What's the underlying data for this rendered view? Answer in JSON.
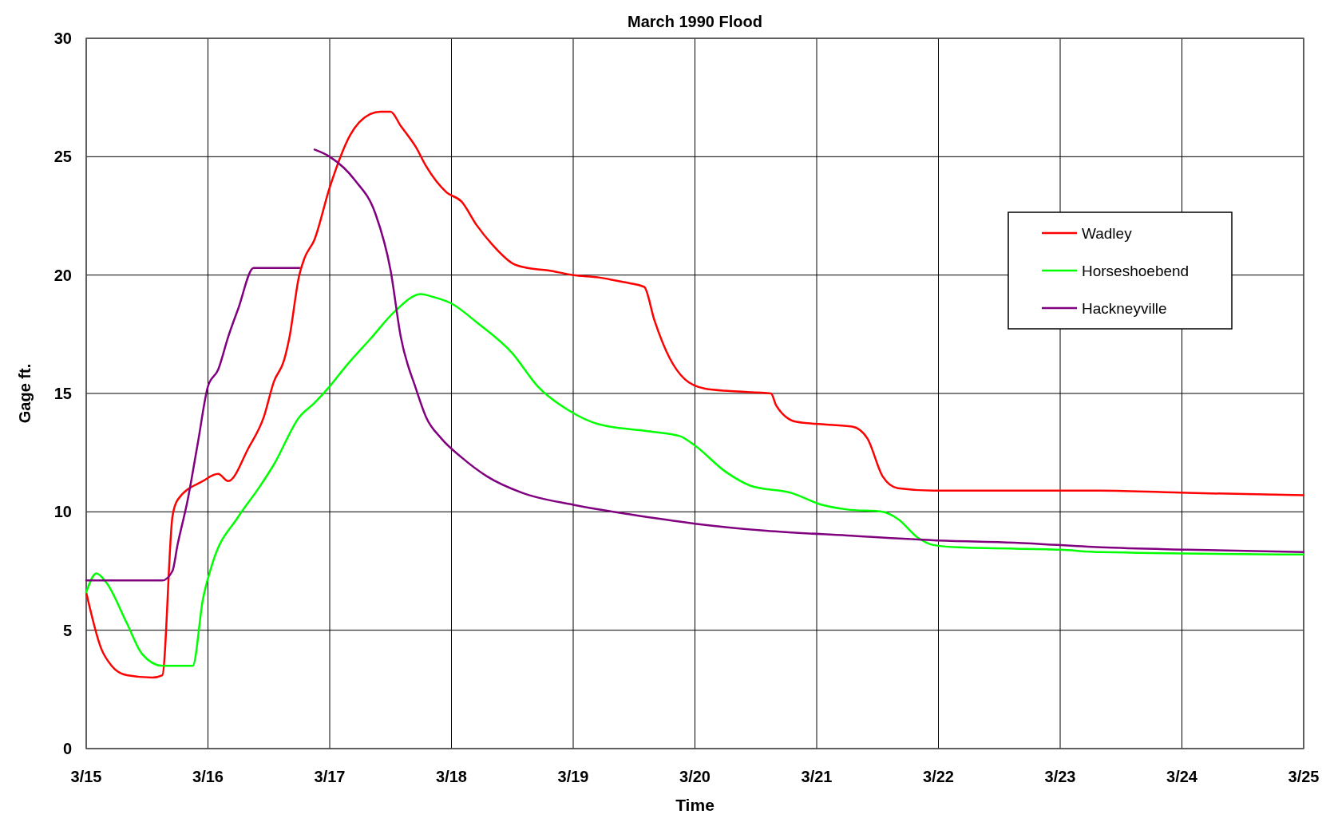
{
  "chart_data": {
    "type": "line",
    "title": "March 1990 Flood",
    "xlabel": "Time",
    "ylabel": "Gage ft.",
    "xlim": [
      "--03-15",
      "--03-25"
    ],
    "xticks": [
      {
        "value": "--03-15",
        "label": "3/15"
      },
      {
        "value": "--03-16",
        "label": "3/16"
      },
      {
        "value": "--03-17",
        "label": "3/17"
      },
      {
        "value": "--03-18",
        "label": "3/18"
      },
      {
        "value": "--03-19",
        "label": "3/19"
      },
      {
        "value": "--03-20",
        "label": "3/20"
      },
      {
        "value": "--03-21",
        "label": "3/21"
      },
      {
        "value": "--03-22",
        "label": "3/22"
      },
      {
        "value": "--03-23",
        "label": "3/23"
      },
      {
        "value": "--03-24",
        "label": "3/24"
      },
      {
        "value": "--03-25",
        "label": "3/25"
      }
    ],
    "ylim": [
      0,
      30
    ],
    "yticks": [
      0,
      5,
      10,
      15,
      20,
      25,
      30
    ],
    "grid": true,
    "legend": "right",
    "marker": "none",
    "line_style": "solid",
    "series": [
      {
        "name": "Wadley",
        "color": "#ff0000",
        "x": [
          "--03-15T00:00",
          "--03-15T03:00",
          "--03-15T05:00",
          "--03-15T08:00",
          "--03-15T13:00",
          "--03-15T15:00",
          "--03-15T17:00",
          "--03-15T18:00",
          "--03-15T23:00",
          "--03-16T02:00",
          "--03-16T04:00",
          "--03-16T08:00",
          "--03-16T11:00",
          "--03-16T13:00",
          "--03-16T15:00",
          "--03-16T16:00",
          "--03-16T18:00",
          "--03-16T19:00",
          "--03-16T21:00",
          "--03-17T00:00",
          "--03-17T04:00",
          "--03-17T08:00",
          "--03-17T10:00",
          "--03-17T12:00",
          "--03-17T14:00",
          "--03-17T17:00",
          "--03-17T19:00",
          "--03-17T23:00",
          "--03-18T02:00",
          "--03-18T05:00",
          "--03-18T08:00",
          "--03-18T12:00",
          "--03-18T15:00",
          "--03-18T19:00",
          "--03-19T00:00",
          "--03-19T05:00",
          "--03-19T10:00",
          "--03-19T14:00",
          "--03-19T16:00",
          "--03-19T19:00",
          "--03-19T22:00",
          "--03-20T02:00",
          "--03-20T07:00",
          "--03-20T15:00",
          "--03-20T16:00",
          "--03-20T20:00",
          "--03-21T01:00",
          "--03-21T07:00",
          "--03-21T10:00",
          "--03-21T13:00",
          "--03-21T16:00",
          "--03-21T23:00",
          "--03-22T15:00",
          "--03-23T08:00",
          "--03-24T01:00",
          "--03-25T00:00"
        ],
        "values": [
          6.6,
          4.2,
          3.5,
          3.1,
          3,
          3.1,
          9.8,
          10.5,
          11.3,
          11.6,
          11.3,
          12.7,
          14,
          15.5,
          16.4,
          17.3,
          20,
          20.7,
          21.5,
          23.7,
          25.9,
          26.8,
          26.9,
          26.9,
          26.3,
          25.4,
          24.6,
          23.5,
          23.1,
          22.1,
          21.3,
          20.5,
          20.3,
          20.2,
          20,
          19.9,
          19.7,
          19.5,
          18.1,
          16.5,
          15.6,
          15.2,
          15.1,
          15,
          14.5,
          13.8,
          13.7,
          13.6,
          13.1,
          11.5,
          11,
          10.9,
          10.9,
          10.9,
          10.8,
          10.7
        ]
      },
      {
        "name": "Horseshoebend",
        "color": "#00ff00",
        "x": [
          "--03-15T00:00",
          "--03-15T02:00",
          "--03-15T04:00",
          "--03-15T08:00",
          "--03-15T11:00",
          "--03-15T15:00",
          "--03-15T21:00",
          "--03-15T23:00",
          "--03-16T01:00",
          "--03-16T06:00",
          "--03-16T10:00",
          "--03-16T13:00",
          "--03-16T18:00",
          "--03-16T21:00",
          "--03-17T00:00",
          "--03-17T03:00",
          "--03-17T08:00",
          "--03-17T13:00",
          "--03-17T18:00",
          "--03-17T20:00",
          "--03-18T00:00",
          "--03-18T05:00",
          "--03-18T12:00",
          "--03-18T17:00",
          "--03-18T23:00",
          "--03-19T05:00",
          "--03-19T15:00",
          "--03-19T21:00",
          "--03-20T00:00",
          "--03-20T06:00",
          "--03-20T11:00",
          "--03-20T19:00",
          "--03-21T01:00",
          "--03-21T06:00",
          "--03-21T13:00",
          "--03-21T16:00",
          "--03-21T20:00",
          "--03-21T23:00",
          "--03-22T04:00",
          "--03-23T00:00",
          "--03-23T08:00",
          "--03-25T00:00"
        ],
        "values": [
          6.6,
          7.4,
          7,
          5.3,
          4,
          3.5,
          3.5,
          6.3,
          7.9,
          9.8,
          11,
          12,
          14,
          14.6,
          15.3,
          16.1,
          17.3,
          18.5,
          19.2,
          19.1,
          18.8,
          18,
          16.7,
          15.3,
          14.3,
          13.7,
          13.4,
          13.2,
          12.8,
          11.7,
          11.1,
          10.8,
          10.3,
          10.1,
          10,
          9.7,
          8.9,
          8.6,
          8.5,
          8.4,
          8.3,
          8.2
        ]
      },
      {
        "name": "Hackneyville",
        "color": "#800080",
        "x": [
          "--03-15T00:00",
          "--03-15T15:00",
          "--03-15T17:00",
          "--03-15T18:00",
          "--03-15T20:00",
          "--03-15T22:00",
          "--03-16T00:00",
          "--03-16T02:00",
          "--03-16T04:00",
          "--03-16T06:00",
          "--03-16T09:00",
          "--03-16T18:00",
          "--03-16T19:00",
          "--03-16T21:00",
          "--03-17T00:00",
          "--03-17T05:00",
          "--03-17T09:00",
          "--03-17T12:00",
          "--03-17T14:00",
          "--03-17T17:00",
          "--03-17T19:00",
          "--03-17T22:00",
          "--03-18T02:00",
          "--03-18T07:00",
          "--03-18T14:00",
          "--03-19T00:00",
          "--03-19T11:00",
          "--03-20T00:00",
          "--03-20T14:00",
          "--03-21T06:00",
          "--03-21T23:00",
          "--03-22T15:00",
          "--03-23T08:00",
          "--03-24T01:00",
          "--03-25T00:00"
        ],
        "values": [
          7.1,
          7.1,
          7.5,
          8.6,
          10.5,
          12.9,
          15.3,
          16,
          17.4,
          18.6,
          20.3,
          20.3,
          null,
          25.3,
          25,
          24,
          22.6,
          20.2,
          17.4,
          15.2,
          14,
          13.1,
          12.3,
          11.5,
          10.8,
          10.3,
          9.9,
          9.5,
          9.2,
          9,
          8.8,
          8.7,
          8.5,
          8.4,
          8.3
        ]
      }
    ]
  }
}
